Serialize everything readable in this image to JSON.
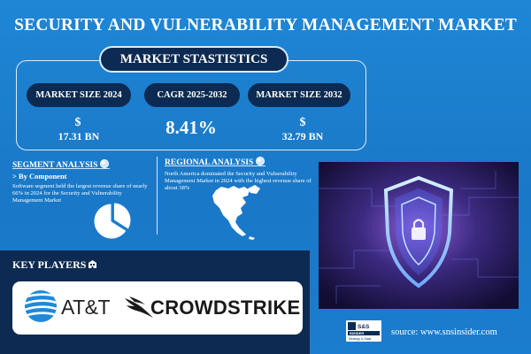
{
  "title": "SECURITY AND VULNERABILITY MANAGEMENT MARKET",
  "stats": {
    "heading": "MARKET STASTISTICS",
    "size_2024": {
      "label": "MARKET SIZE 2024",
      "currency": "$",
      "value": "17.31 BN"
    },
    "cagr": {
      "label": "CAGR 2025-2032",
      "value": "8.41%"
    },
    "size_2032": {
      "label": "MARKET SIZE 2032",
      "currency": "$",
      "value": "32.79 BN"
    }
  },
  "segment": {
    "heading": "SEGMENT ANALYSIS",
    "sub": "> By Component",
    "text": "Software segment held the largest revenue share of nearly 66% in 2024 for the Security and Vulnerability Management Market",
    "pie_share": 0.66
  },
  "regional": {
    "heading": "REGIONAL ANALYSIS",
    "text": "North America dominated the Security and Vulnerability Management Market in 2024 with the highest revenue share of about 38%"
  },
  "key_players": {
    "heading": "KEY PLAYERS",
    "players": [
      "AT&T",
      "CROWDSTRIKE"
    ]
  },
  "source": "source: www.snsinsider.com",
  "sns_logo_text": [
    "S&S",
    "INSIDER",
    "Strategy & Stats"
  ],
  "icons": {
    "segment": "globe-icon",
    "regional": "globe-icon",
    "key_players": "building-icon",
    "att": "att-globe-logo",
    "crowdstrike": "falcon-logo",
    "photo": "shield-icon"
  },
  "colors": {
    "background": "#1e7fd0",
    "navy": "#0d2b52",
    "white": "#ffffff",
    "att_blue": "#1f8ad8"
  }
}
